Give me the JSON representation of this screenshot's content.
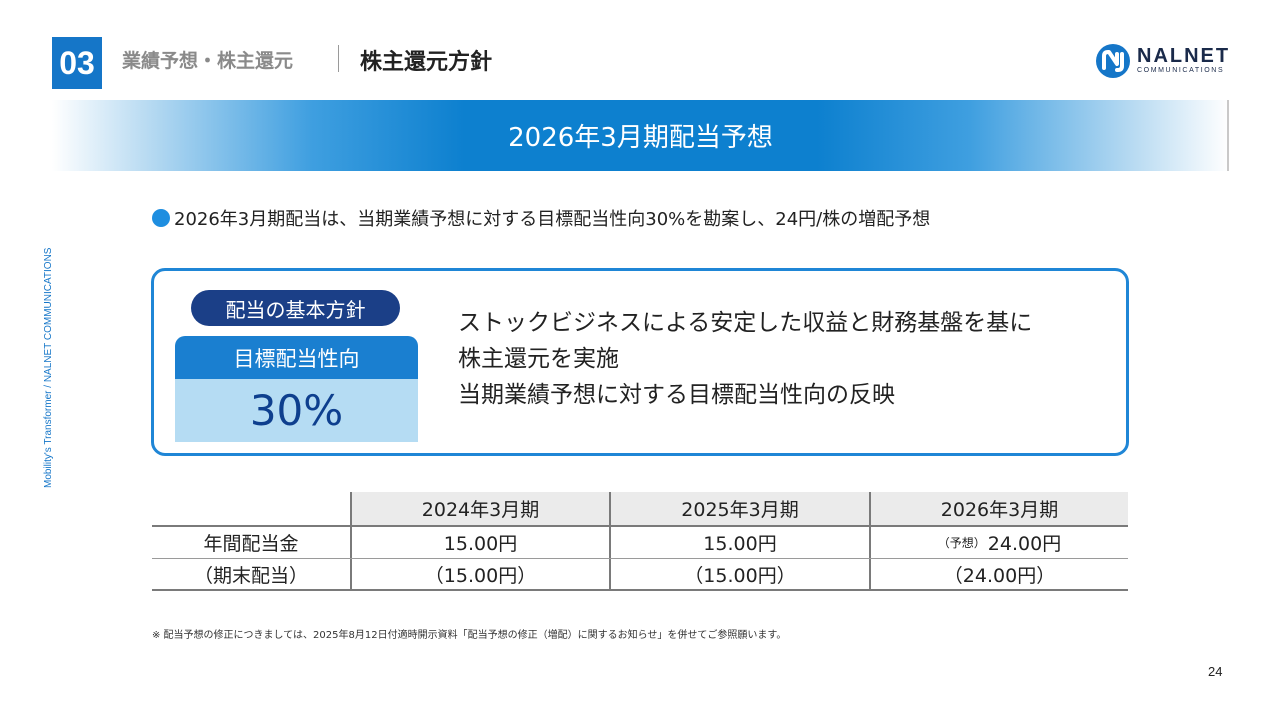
{
  "header": {
    "section_number": "03",
    "section_title": "業績予想・株主還元",
    "page_title": "株主還元方針"
  },
  "logo": {
    "name": "NALNET",
    "subtitle": "COMMUNICATIONS",
    "color": "#1a2a4a"
  },
  "banner": {
    "title": "2026年3月期配当予想"
  },
  "side_text": "Mobility's Transformer / NALNET COMMUNICATIONS",
  "bullet": {
    "text": "2026年3月期配当は、当期業績予想に対する目標配当性向30%を勘案し、24円/株の増配予想"
  },
  "policy": {
    "pill_label": "配当の基本方針",
    "ratio_label": "目標配当性向",
    "ratio_value": "30%",
    "lines": [
      "ストックビジネスによる安定した収益と財務基盤を基に",
      "株主還元を実施",
      "当期業績予想に対する目標配当性向の反映"
    ]
  },
  "dividend_table": {
    "columns": [
      "",
      "2024年3月期",
      "2025年3月期",
      "2026年3月期"
    ],
    "rows": [
      {
        "label": "年間配当金",
        "values": [
          "15.00円",
          "15.00円",
          "24.00円"
        ],
        "note": "（予想）"
      },
      {
        "label": "（期末配当）",
        "values": [
          "（15.00円）",
          "（15.00円）",
          "（24.00円）"
        ]
      }
    ]
  },
  "footnote": "※ 配当予想の修正につきましては、2025年8月12日付適時開示資料「配当予想の修正（増配）に関するお知らせ」を併せてご参照願います。",
  "page_number": "24",
  "colors": {
    "accent": "#1576c8",
    "banner_blue": "#0d80cf",
    "navy": "#1b3f87",
    "light_blue": "#b5dcf3"
  }
}
